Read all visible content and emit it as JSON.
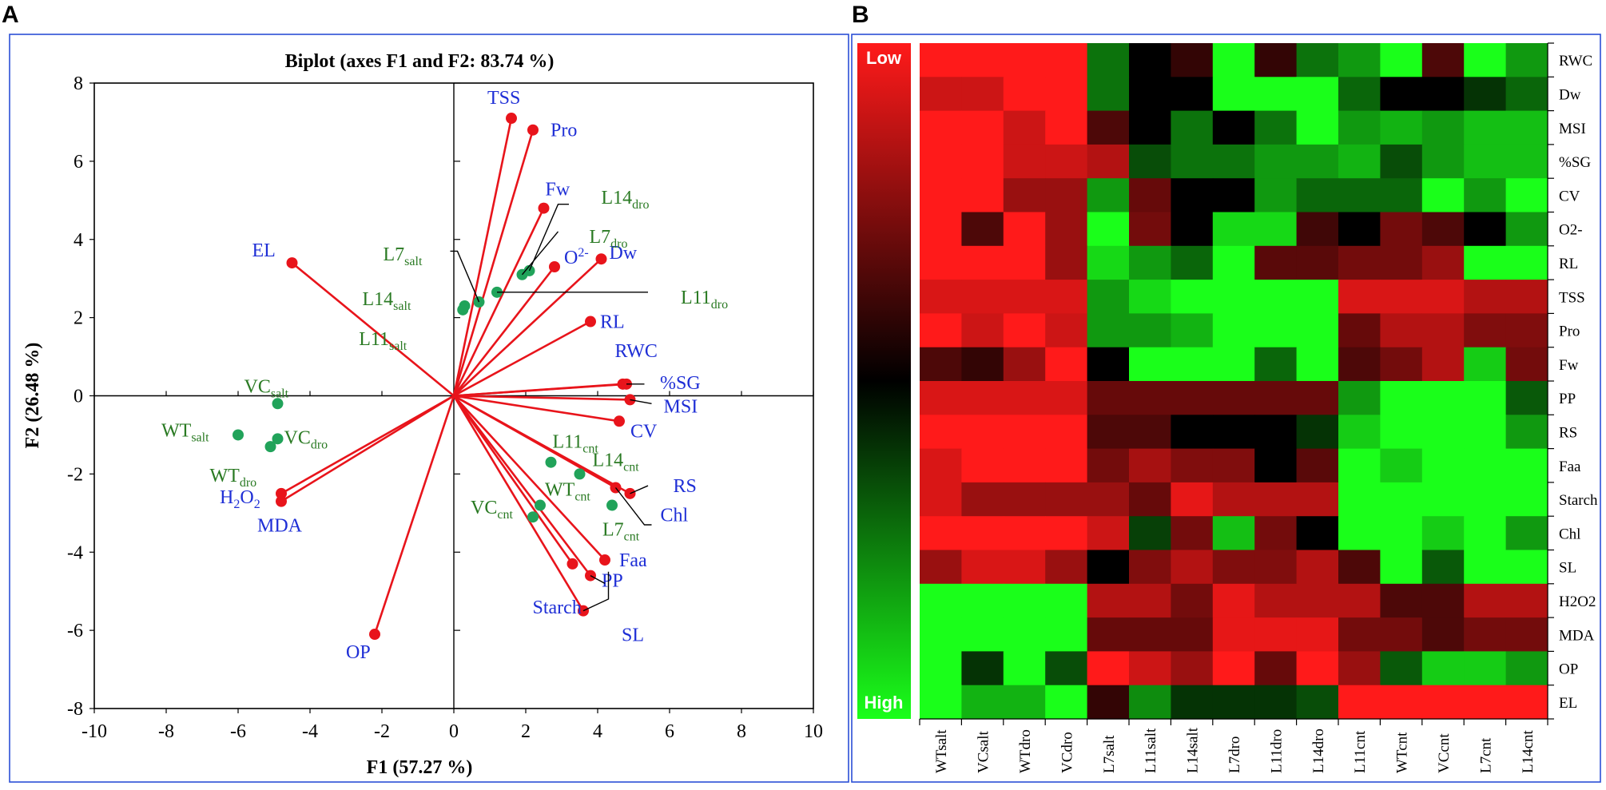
{
  "panel_a_label": "A",
  "panel_b_label": "B",
  "chart_data": [
    {
      "type": "scatter",
      "subtype": "pca-biplot",
      "title": "Biplot (axes F1 and F2: 83.74 %)",
      "xlabel": "F1 (57.27 %)",
      "ylabel": "F2 (26.48 %)",
      "xlim": [
        -10,
        10
      ],
      "ylim": [
        -8,
        8
      ],
      "xticks": [
        -10,
        -8,
        -6,
        -4,
        -2,
        0,
        2,
        4,
        6,
        8,
        10
      ],
      "yticks": [
        -8,
        -6,
        -4,
        -2,
        0,
        2,
        4,
        6,
        8
      ],
      "colors": {
        "variables": "#e8141b",
        "variable_labels": "#1f2fd6",
        "observations": "#21a35a",
        "observation_labels": "#2a7a23"
      },
      "variables": [
        {
          "name": "TSS",
          "x": 1.6,
          "y": 7.1
        },
        {
          "name": "Pro",
          "x": 2.2,
          "y": 6.8
        },
        {
          "name": "Fw",
          "x": 2.5,
          "y": 4.8
        },
        {
          "name": "O",
          "sup": "2-",
          "x": 2.8,
          "y": 3.3
        },
        {
          "name": "Dw",
          "x": 4.1,
          "y": 3.5
        },
        {
          "name": "EL",
          "x": -4.5,
          "y": 3.4
        },
        {
          "name": "RL",
          "x": 3.8,
          "y": 1.9
        },
        {
          "name": "RWC",
          "x": 4.7,
          "y": 0.3
        },
        {
          "name": "%SG",
          "x": 4.8,
          "y": 0.3
        },
        {
          "name": "MSI",
          "x": 4.9,
          "y": -0.1
        },
        {
          "name": "CV",
          "x": 4.6,
          "y": -0.65
        },
        {
          "name": "RS",
          "x": 4.9,
          "y": -2.5
        },
        {
          "name": "Chl",
          "x": 4.5,
          "y": -2.35
        },
        {
          "name": "Faa",
          "x": 4.2,
          "y": -4.2
        },
        {
          "name": "PP",
          "x": 3.8,
          "y": -4.6
        },
        {
          "name": "SL",
          "x": 3.6,
          "y": -5.5
        },
        {
          "name": "Starch",
          "x": 3.3,
          "y": -4.3
        },
        {
          "name": "H",
          "sub1": "2",
          "mid": "O",
          "sub2": "2",
          "x": -4.8,
          "y": -2.5
        },
        {
          "name": "MDA",
          "x": -4.8,
          "y": -2.7
        },
        {
          "name": "OP",
          "x": -2.2,
          "y": -6.1
        }
      ],
      "observations": [
        {
          "base": "L14",
          "sub": "dro",
          "x": 2.1,
          "y": 3.2
        },
        {
          "base": "L7",
          "sub": "dro",
          "x": 1.9,
          "y": 3.1
        },
        {
          "base": "L7",
          "sub": "salt",
          "x": 0.7,
          "y": 2.4
        },
        {
          "base": "L14",
          "sub": "salt",
          "x": 0.3,
          "y": 2.3
        },
        {
          "base": "L11",
          "sub": "salt",
          "x": 0.25,
          "y": 2.2
        },
        {
          "base": "L11",
          "sub": "dro",
          "x": 1.2,
          "y": 2.65
        },
        {
          "base": "VC",
          "sub": "salt",
          "x": -4.9,
          "y": -0.2
        },
        {
          "base": "WT",
          "sub": "salt",
          "x": -6.0,
          "y": -1.0
        },
        {
          "base": "VC",
          "sub": "dro",
          "x": -4.9,
          "y": -1.1
        },
        {
          "base": "WT",
          "sub": "dro",
          "x": -5.1,
          "y": -1.3
        },
        {
          "base": "L11",
          "sub": "cnt",
          "x": 2.7,
          "y": -1.7
        },
        {
          "base": "L14",
          "sub": "cnt",
          "x": 3.5,
          "y": -2.0
        },
        {
          "base": "WT",
          "sub": "cnt",
          "x": 2.4,
          "y": -2.8
        },
        {
          "base": "L7",
          "sub": "cnt",
          "x": 4.4,
          "y": -2.8
        },
        {
          "base": "VC",
          "sub": "cnt",
          "x": 2.2,
          "y": -3.1
        }
      ]
    },
    {
      "type": "heatmap",
      "title": "",
      "rows": [
        "RWC",
        "Dw",
        "MSI",
        "%SG",
        "CV",
        "O2-",
        "RL",
        "TSS",
        "Pro",
        "Fw",
        "PP",
        "RS",
        "Faa",
        "Starch",
        "Chl",
        "SL",
        "H2O2",
        "MDA",
        "OP",
        "EL"
      ],
      "columns": [
        "WTsalt",
        "VCsalt",
        "WTdro",
        "VCdro",
        "L7salt",
        "L11salt",
        "L14salt",
        "L7dro",
        "L11dro",
        "L14dro",
        "L11cnt",
        "WTcnt",
        "VCcnt",
        "L7cnt",
        "L14cnt"
      ],
      "value_range": [
        -1,
        1
      ],
      "legend": {
        "low_label": "Low",
        "high_label": "High",
        "low_color": "#ff1a1a",
        "mid_color": "#000000",
        "high_color": "#1aff1a"
      },
      "values": [
        [
          -1,
          -1,
          -1,
          -1,
          0.45,
          0,
          -0.2,
          1,
          -0.2,
          0.45,
          0.6,
          1,
          -0.3,
          1,
          0.6
        ],
        [
          -0.8,
          -0.8,
          -1,
          -1,
          0.45,
          0,
          0,
          1,
          1,
          1,
          0.4,
          0,
          0,
          0.2,
          0.4
        ],
        [
          -1,
          -1,
          -0.8,
          -1,
          -0.3,
          0,
          0.45,
          0,
          0.45,
          1,
          0.6,
          0.7,
          0.6,
          0.75,
          0.75
        ],
        [
          -1,
          -1,
          -0.8,
          -0.8,
          -0.7,
          0.3,
          0.45,
          0.45,
          0.6,
          0.6,
          0.7,
          0.3,
          0.6,
          0.75,
          0.75
        ],
        [
          -1,
          -1,
          -0.6,
          -0.6,
          0.6,
          -0.4,
          0,
          0,
          0.6,
          0.4,
          0.4,
          0.4,
          1,
          0.6,
          1
        ],
        [
          -1,
          -0.3,
          -1,
          -0.6,
          1,
          -0.45,
          0,
          0.85,
          0.85,
          -0.25,
          0,
          -0.45,
          -0.3,
          0,
          0.6
        ],
        [
          -1,
          -1,
          -1,
          -0.6,
          0.85,
          0.6,
          0.4,
          1,
          -0.35,
          -0.35,
          -0.45,
          -0.45,
          -0.6,
          1,
          1
        ],
        [
          -0.85,
          -0.85,
          -0.85,
          -0.85,
          0.6,
          0.85,
          1,
          1,
          1,
          1,
          -0.85,
          -0.85,
          -0.85,
          -0.7,
          -0.7
        ],
        [
          -1,
          -0.8,
          -1,
          -0.8,
          0.6,
          0.6,
          0.7,
          1,
          1,
          1,
          -0.4,
          -0.7,
          -0.7,
          -0.5,
          -0.5
        ],
        [
          -0.3,
          -0.2,
          -0.6,
          -1,
          0,
          1,
          1,
          1,
          0.4,
          1,
          -0.3,
          -0.45,
          -0.7,
          0.8,
          -0.45
        ],
        [
          -0.85,
          -0.85,
          -0.85,
          -0.85,
          -0.4,
          -0.4,
          -0.4,
          -0.4,
          -0.4,
          -0.4,
          0.6,
          1,
          1,
          1,
          0.35
        ],
        [
          -1,
          -1,
          -1,
          -1,
          -0.3,
          -0.3,
          0,
          0,
          0,
          0.2,
          0.8,
          1,
          1,
          1,
          0.6
        ],
        [
          -0.85,
          -1,
          -1,
          -1,
          -0.45,
          -0.65,
          -0.5,
          -0.5,
          0,
          -0.35,
          1,
          0.8,
          1,
          1,
          1
        ],
        [
          -0.85,
          -0.6,
          -0.6,
          -0.6,
          -0.6,
          -0.4,
          -0.9,
          -0.7,
          -0.7,
          -0.7,
          1,
          1,
          1,
          1,
          1
        ],
        [
          -1,
          -1,
          -1,
          -1,
          -0.8,
          0.25,
          -0.45,
          0.75,
          -0.45,
          0,
          1,
          1,
          0.8,
          1,
          0.6
        ],
        [
          -0.6,
          -0.85,
          -0.85,
          -0.6,
          0,
          -0.5,
          -0.7,
          -0.5,
          -0.5,
          -0.7,
          -0.3,
          1,
          0.35,
          1,
          1
        ],
        [
          1,
          1,
          1,
          1,
          -0.7,
          -0.7,
          -0.45,
          -0.9,
          -0.7,
          -0.7,
          -0.7,
          -0.3,
          -0.3,
          -0.7,
          -0.7
        ],
        [
          1,
          1,
          1,
          1,
          -0.4,
          -0.4,
          -0.4,
          -0.9,
          -0.9,
          -0.9,
          -0.45,
          -0.45,
          -0.3,
          -0.45,
          -0.45
        ],
        [
          1,
          0.2,
          1,
          0.3,
          -1,
          -0.8,
          -0.6,
          -1,
          -0.4,
          -1,
          -0.6,
          0.35,
          0.8,
          0.8,
          0.6
        ],
        [
          1,
          0.7,
          0.7,
          1,
          -0.2,
          0.55,
          0.2,
          0.2,
          0.2,
          0.3,
          -1,
          -1,
          -1,
          -1,
          -1
        ]
      ]
    }
  ]
}
